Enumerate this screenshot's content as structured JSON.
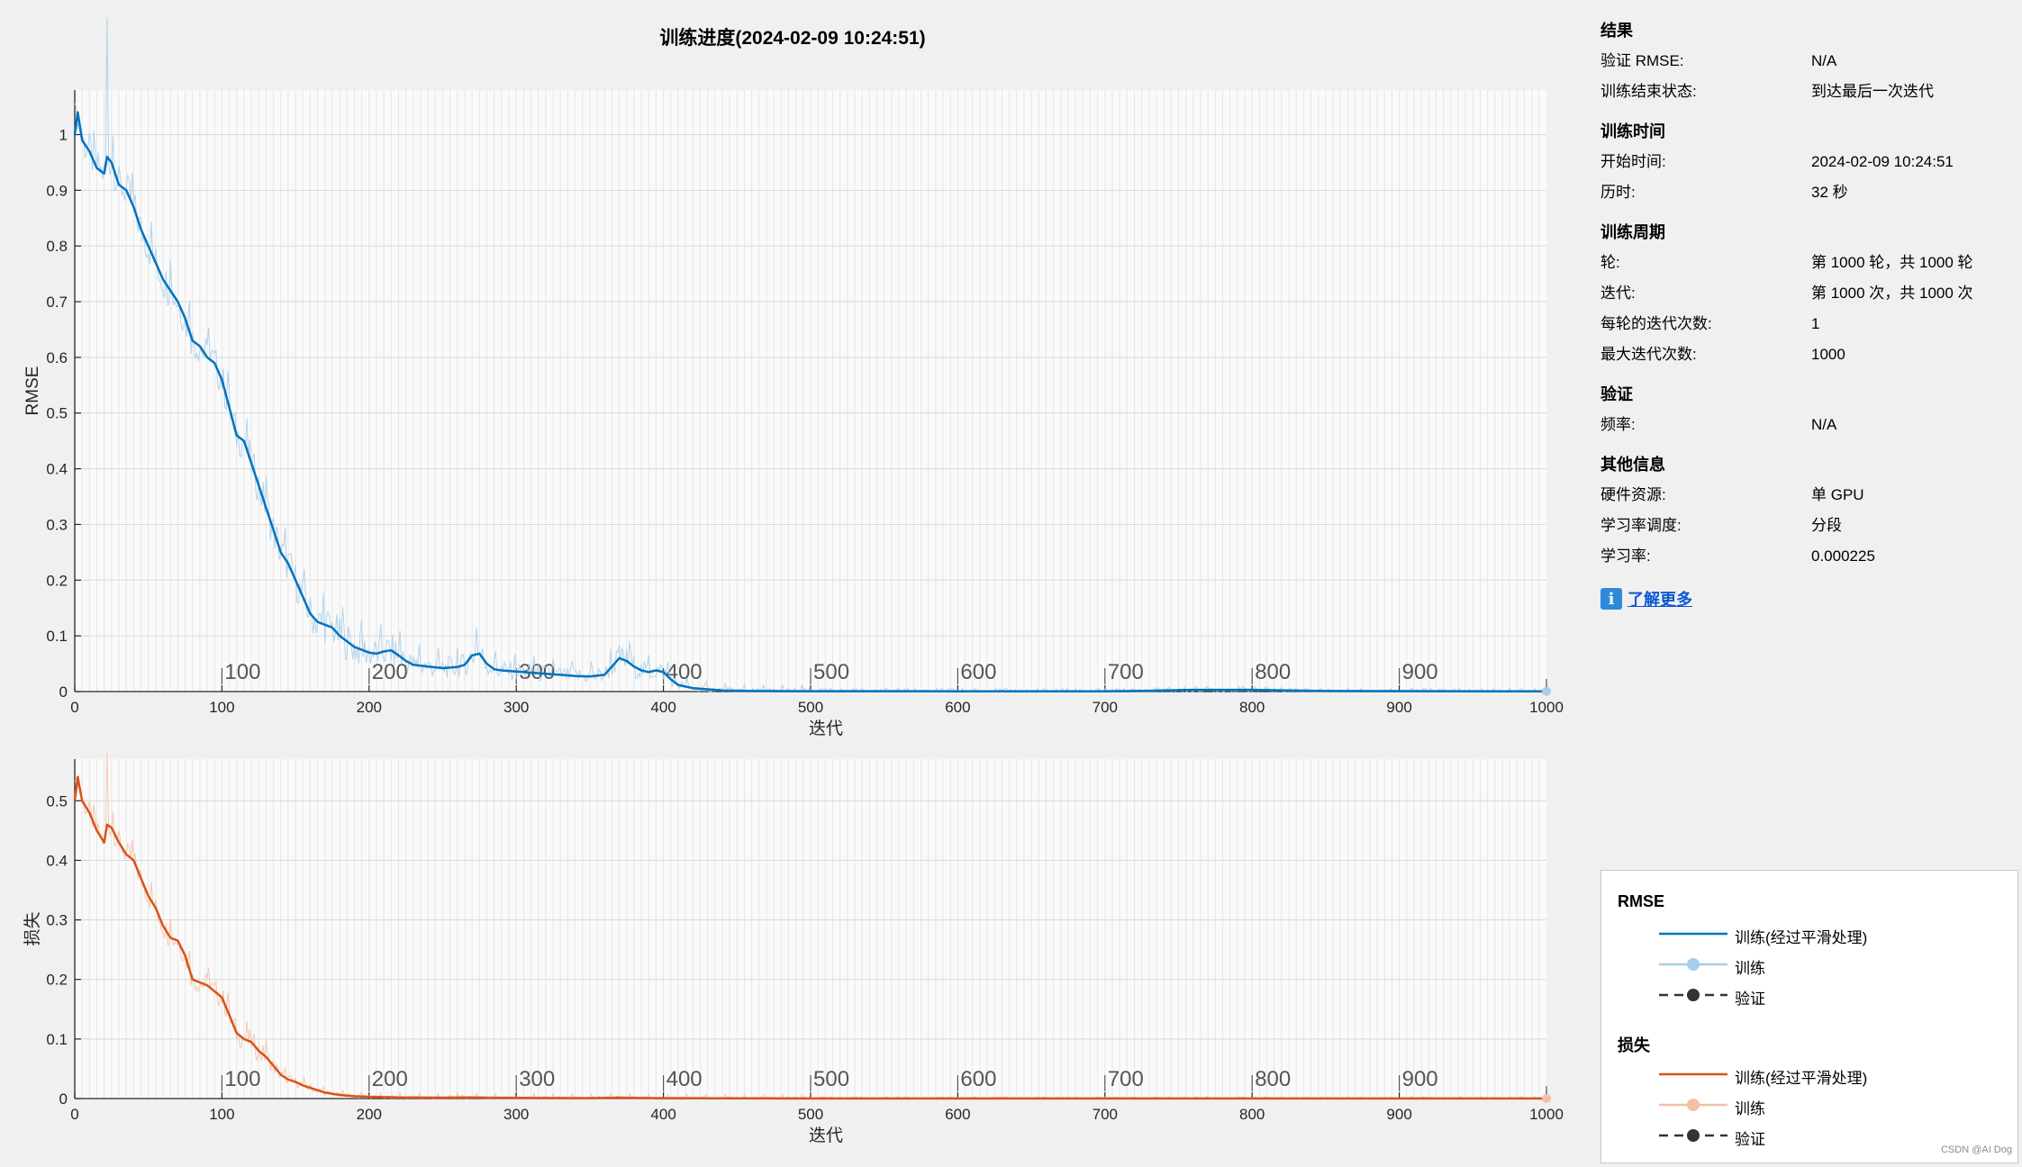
{
  "title": "训练进度(2024-02-09 10:24:51)",
  "chart_data": [
    {
      "type": "line",
      "ylabel": "RMSE",
      "xlabel": "迭代",
      "xlim": [
        0,
        1000
      ],
      "ylim": [
        0,
        1.08
      ],
      "xticks": [
        0,
        100,
        200,
        300,
        400,
        500,
        600,
        700,
        800,
        900,
        1000
      ],
      "yticks": [
        0,
        0.1,
        0.2,
        0.3,
        0.4,
        0.5,
        0.6,
        0.7,
        0.8,
        0.9,
        1
      ],
      "epoch_labels": [
        "100",
        "200",
        "300",
        "400",
        "500",
        "600",
        "700",
        "800",
        "900"
      ],
      "grid": true,
      "series": [
        {
          "name": "训练(经过平滑处理)",
          "color": "#0072bd",
          "x": [
            0,
            2,
            5,
            10,
            15,
            20,
            22,
            25,
            30,
            35,
            40,
            45,
            50,
            55,
            60,
            65,
            70,
            75,
            80,
            85,
            90,
            95,
            100,
            105,
            110,
            115,
            120,
            125,
            130,
            135,
            140,
            145,
            150,
            155,
            160,
            165,
            170,
            175,
            180,
            185,
            190,
            195,
            200,
            205,
            210,
            215,
            220,
            225,
            230,
            240,
            250,
            260,
            265,
            270,
            275,
            280,
            285,
            290,
            300,
            310,
            320,
            330,
            340,
            350,
            360,
            365,
            370,
            375,
            380,
            385,
            390,
            395,
            400,
            405,
            410,
            420,
            430,
            440,
            450,
            460,
            480,
            500,
            550,
            600,
            650,
            700,
            720,
            740,
            760,
            800,
            850,
            900,
            950,
            1000
          ],
          "y": [
            1.0,
            1.04,
            0.99,
            0.97,
            0.94,
            0.93,
            0.96,
            0.95,
            0.91,
            0.9,
            0.87,
            0.83,
            0.8,
            0.77,
            0.74,
            0.72,
            0.7,
            0.67,
            0.63,
            0.62,
            0.6,
            0.59,
            0.56,
            0.51,
            0.46,
            0.45,
            0.41,
            0.37,
            0.33,
            0.29,
            0.25,
            0.23,
            0.2,
            0.17,
            0.14,
            0.125,
            0.12,
            0.115,
            0.1,
            0.09,
            0.08,
            0.075,
            0.07,
            0.068,
            0.072,
            0.074,
            0.065,
            0.055,
            0.048,
            0.045,
            0.042,
            0.044,
            0.048,
            0.065,
            0.068,
            0.05,
            0.04,
            0.038,
            0.036,
            0.034,
            0.032,
            0.03,
            0.028,
            0.027,
            0.03,
            0.045,
            0.06,
            0.055,
            0.045,
            0.038,
            0.035,
            0.038,
            0.035,
            0.022,
            0.012,
            0.006,
            0.004,
            0.002,
            0.0015,
            0.001,
            0.0008,
            0.0007,
            0.0006,
            0.0005,
            0.0004,
            0.0003,
            0.001,
            0.002,
            0.003,
            0.003,
            0.001,
            0.0008,
            0.0005,
            0.0004
          ]
        }
      ]
    },
    {
      "type": "line",
      "ylabel": "损失",
      "xlabel": "迭代",
      "xlim": [
        0,
        1000
      ],
      "ylim": [
        0,
        0.57
      ],
      "xticks": [
        0,
        100,
        200,
        300,
        400,
        500,
        600,
        700,
        800,
        900,
        1000
      ],
      "yticks": [
        0,
        0.1,
        0.2,
        0.3,
        0.4,
        0.5
      ],
      "epoch_labels": [
        "100",
        "200",
        "300",
        "400",
        "500",
        "600",
        "700",
        "800",
        "900"
      ],
      "grid": true,
      "series": [
        {
          "name": "训练(经过平滑处理)",
          "color": "#d95319",
          "x": [
            0,
            2,
            5,
            10,
            15,
            20,
            22,
            25,
            30,
            35,
            40,
            45,
            50,
            55,
            60,
            65,
            70,
            75,
            80,
            85,
            90,
            95,
            100,
            105,
            110,
            115,
            120,
            125,
            130,
            135,
            140,
            145,
            150,
            155,
            160,
            165,
            170,
            175,
            180,
            190,
            200,
            220,
            250,
            270,
            280,
            300,
            350,
            370,
            380,
            400,
            450,
            500,
            600,
            700,
            800,
            900,
            1000
          ],
          "y": [
            0.5,
            0.54,
            0.5,
            0.48,
            0.45,
            0.43,
            0.46,
            0.455,
            0.43,
            0.41,
            0.4,
            0.37,
            0.34,
            0.32,
            0.29,
            0.27,
            0.265,
            0.24,
            0.2,
            0.195,
            0.19,
            0.18,
            0.17,
            0.14,
            0.11,
            0.1,
            0.095,
            0.08,
            0.07,
            0.055,
            0.04,
            0.032,
            0.028,
            0.022,
            0.018,
            0.014,
            0.01,
            0.008,
            0.006,
            0.004,
            0.003,
            0.002,
            0.0015,
            0.002,
            0.0015,
            0.001,
            0.0008,
            0.0015,
            0.001,
            0.0006,
            0.0003,
            0.0002,
            0.0001,
            0.0001,
            0.0001,
            0.0001,
            0.0001
          ]
        }
      ]
    }
  ],
  "info": {
    "results": {
      "heading": "结果",
      "rows": [
        {
          "k": "验证 RMSE:",
          "v": "N/A"
        },
        {
          "k": "训练结束状态:",
          "v": "到达最后一次迭代"
        }
      ]
    },
    "time": {
      "heading": "训练时间",
      "rows": [
        {
          "k": "开始时间:",
          "v": "2024-02-09 10:24:51"
        },
        {
          "k": "历时:",
          "v": "32 秒"
        }
      ]
    },
    "cycle": {
      "heading": "训练周期",
      "rows": [
        {
          "k": "轮:",
          "v": "第 1000 轮，共 1000 轮"
        },
        {
          "k": "迭代:",
          "v": "第 1000 次，共 1000 次"
        },
        {
          "k": "每轮的迭代次数:",
          "v": "1"
        },
        {
          "k": "最大迭代次数:",
          "v": "1000"
        }
      ]
    },
    "validation": {
      "heading": "验证",
      "rows": [
        {
          "k": "频率:",
          "v": "N/A"
        }
      ]
    },
    "other": {
      "heading": "其他信息",
      "rows": [
        {
          "k": "硬件资源:",
          "v": "单 GPU"
        },
        {
          "k": "学习率调度:",
          "v": "分段"
        },
        {
          "k": "学习率:",
          "v": "0.000225"
        }
      ]
    },
    "learn_more": "了解更多"
  },
  "legend": {
    "rmse_title": "RMSE",
    "loss_title": "损失",
    "items": {
      "smoothed": "训练(经过平滑处理)",
      "train": "训练",
      "val": "验证"
    },
    "colors": {
      "rmse_smoothed": "#0072bd",
      "rmse_train": "#a6cdea",
      "loss_smoothed": "#d95319",
      "loss_train": "#f3bfa5",
      "val": "#333333"
    }
  },
  "watermark": "CSDN @AI Dog"
}
